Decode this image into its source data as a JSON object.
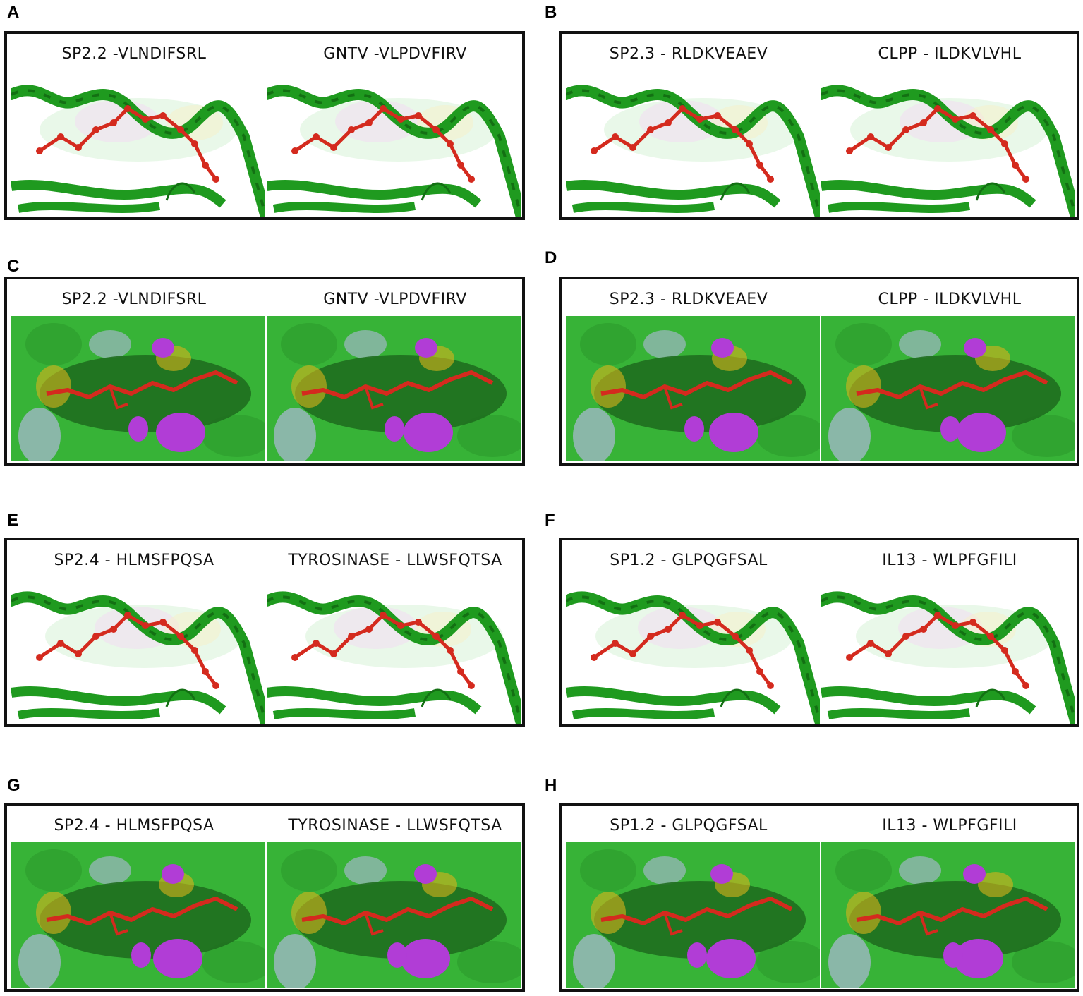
{
  "panels": [
    {
      "letter": "A",
      "type": "cartoon",
      "left_title": "SP2.2 -VLNDIFSRL",
      "right_title": "GNTV -VLPDVFIRV"
    },
    {
      "letter": "B",
      "type": "cartoon",
      "left_title": "SP2.3 - RLDKVEAEV",
      "right_title": "CLPP - ILDKVLVHL"
    },
    {
      "letter": "C",
      "type": "surface",
      "left_title": "SP2.2 -VLNDIFSRL",
      "right_title": "GNTV -VLPDVFIRV"
    },
    {
      "letter": "D",
      "type": "surface",
      "left_title": "SP2.3 - RLDKVEAEV",
      "right_title": "CLPP - ILDKVLVHL"
    },
    {
      "letter": "E",
      "type": "cartoon",
      "left_title": "SP2.4 - HLMSFPQSA",
      "right_title": "TYROSINASE - LLWSFQTSA"
    },
    {
      "letter": "F",
      "type": "cartoon",
      "left_title": "SP1.2 - GLPQGFSAL",
      "right_title": "IL13 - WLPFGFILI"
    },
    {
      "letter": "G",
      "type": "surface",
      "left_title": "SP2.4 - HLMSFPQSA",
      "right_title": "TYROSINASE - LLWSFQTSA"
    },
    {
      "letter": "H",
      "type": "surface",
      "left_title": "SP1.2 - GLPQGFSAL",
      "right_title": "IL13 - WLPFGFILI"
    }
  ],
  "colors": {
    "helix": "#1f9a1f",
    "helix_dark": "#137013",
    "surface": "#37b337",
    "surface_dark": "#1f6e1f",
    "peptide": "#d42a1e",
    "pocket_magenta": "#b13dd6",
    "pocket_yellow": "#d9b21b",
    "pocket_grayblue": "#9fb8c4"
  }
}
